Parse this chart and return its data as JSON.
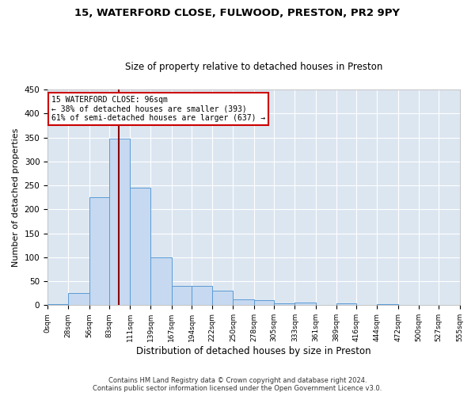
{
  "title1": "15, WATERFORD CLOSE, FULWOOD, PRESTON, PR2 9PY",
  "title2": "Size of property relative to detached houses in Preston",
  "xlabel": "Distribution of detached houses by size in Preston",
  "ylabel": "Number of detached properties",
  "bin_edges": [
    0,
    28,
    56,
    83,
    111,
    139,
    167,
    194,
    222,
    250,
    278,
    305,
    333,
    361,
    389,
    416,
    444,
    472,
    500,
    527,
    555
  ],
  "bar_heights": [
    3,
    25,
    225,
    347,
    245,
    100,
    40,
    40,
    30,
    12,
    10,
    4,
    5,
    0,
    4,
    0,
    2,
    0,
    0,
    0
  ],
  "bar_color": "#c6d9f0",
  "bar_edge_color": "#5b9bd5",
  "property_size": 96,
  "vline_color": "#8b0000",
  "annotation_line1": "15 WATERFORD CLOSE: 96sqm",
  "annotation_line2": "← 38% of detached houses are smaller (393)",
  "annotation_line3": "61% of semi-detached houses are larger (637) →",
  "annotation_box_color": "#ffffff",
  "annotation_box_edge": "#cc0000",
  "footer1": "Contains HM Land Registry data © Crown copyright and database right 2024.",
  "footer2": "Contains public sector information licensed under the Open Government Licence v3.0.",
  "ylim": [
    0,
    450
  ],
  "yticks": [
    0,
    50,
    100,
    150,
    200,
    250,
    300,
    350,
    400,
    450
  ],
  "background_color": "#ffffff",
  "axes_bg_color": "#dce6f1",
  "grid_color": "#ffffff",
  "tick_labels": [
    "0sqm",
    "28sqm",
    "56sqm",
    "83sqm",
    "111sqm",
    "139sqm",
    "167sqm",
    "194sqm",
    "222sqm",
    "250sqm",
    "278sqm",
    "305sqm",
    "333sqm",
    "361sqm",
    "389sqm",
    "416sqm",
    "444sqm",
    "472sqm",
    "500sqm",
    "527sqm",
    "555sqm"
  ]
}
